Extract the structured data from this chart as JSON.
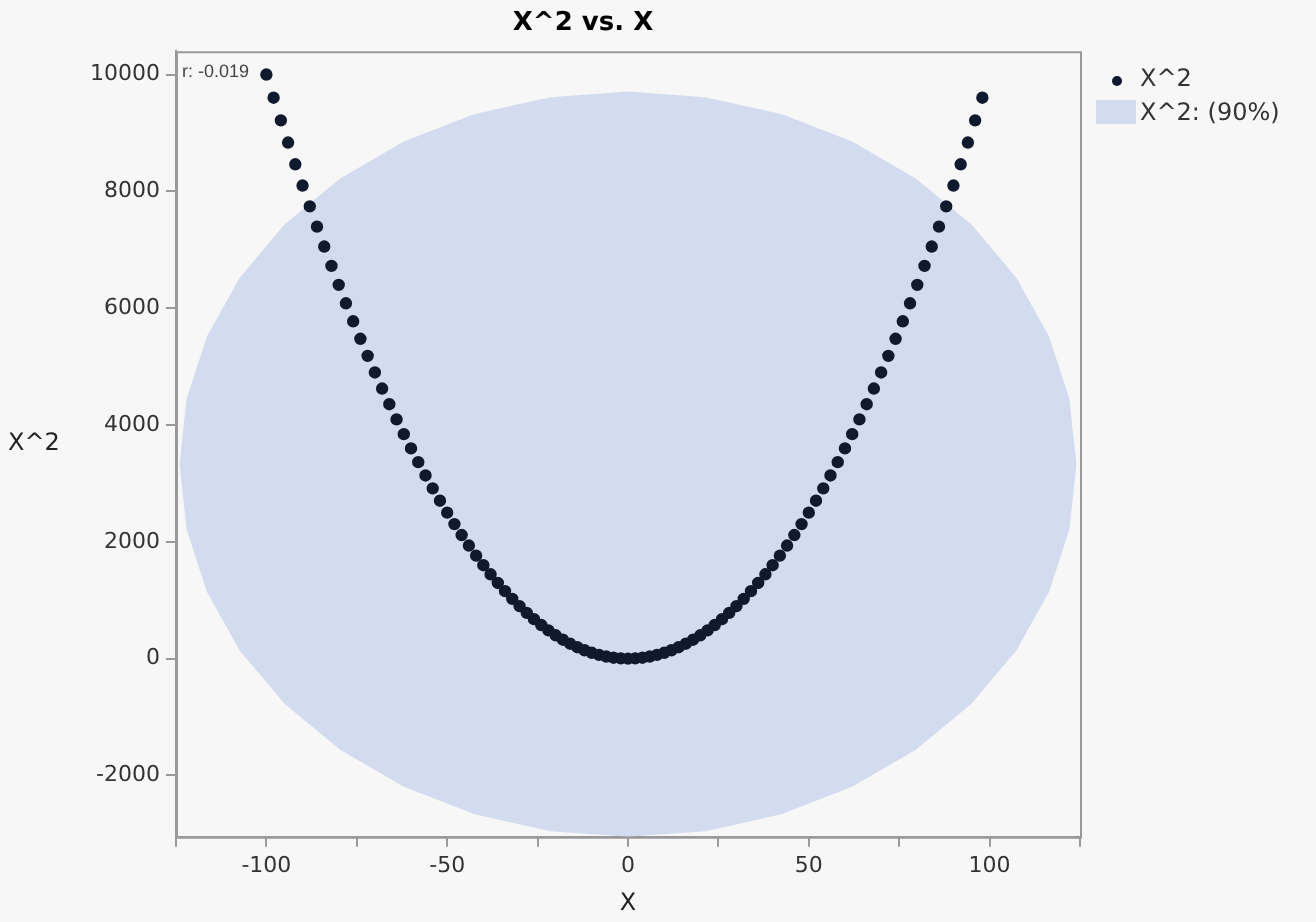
{
  "chart_data": {
    "type": "scatter",
    "title": "X^2 vs. X",
    "xlabel": "X",
    "ylabel": "X^2",
    "xlim": [
      -125,
      125
    ],
    "xticks": [
      {
        "value": -125,
        "label": null
      },
      -100,
      {
        "value": -75,
        "label": null
      },
      -50,
      {
        "value": -25,
        "label": null
      },
      0,
      {
        "value": 25,
        "label": null
      },
      50,
      {
        "value": 75,
        "label": null
      },
      100,
      {
        "value": 125,
        "label": null
      }
    ],
    "ylim": [
      -3050,
      10400
    ],
    "yticks": [
      -2000,
      0,
      2000,
      4000,
      6000,
      8000,
      10000
    ],
    "grid": false,
    "legend": "top right",
    "annotations": [
      "r: -0.019"
    ],
    "series": [
      {
        "name": "X^2: (90%)",
        "type": "area",
        "color": "#d3dcef",
        "x": [
          124,
          122.1,
          116.5,
          107.4,
          95,
          79.7,
          62,
          42.4,
          21.5,
          0,
          -21.5,
          -42.4,
          -62,
          -79.7,
          -95,
          -107.4,
          -116.5,
          -122.1,
          -124,
          -122.1,
          -116.5,
          -107.4,
          -95,
          -79.7,
          -62,
          -42.4,
          -21.5,
          0,
          21.5,
          42.4,
          62,
          79.7,
          95,
          107.4,
          116.5,
          122.1,
          124
        ],
        "values": [
          3330,
          4438,
          5512,
          6520,
          7431,
          8217,
          8855,
          9325,
          9613,
          9710,
          9613,
          9325,
          8855,
          8217,
          7431,
          6520,
          5512,
          4438,
          3330,
          2222,
          1148,
          140,
          -771,
          -1557,
          -2195,
          -2665,
          -2953,
          -3050,
          -2953,
          -2665,
          -2195,
          -1557,
          -771,
          140,
          1148,
          2222,
          3330
        ]
      },
      {
        "name": "X^2",
        "type": "scatter",
        "marker": "circle",
        "color": "#0f1a2e",
        "x": [
          -100,
          -98,
          -96,
          -94,
          -92,
          -90,
          -88,
          -86,
          -84,
          -82,
          -80,
          -78,
          -76,
          -74,
          -72,
          -70,
          -68,
          -66,
          -64,
          -62,
          -60,
          -58,
          -56,
          -54,
          -52,
          -50,
          -48,
          -46,
          -44,
          -42,
          -40,
          -38,
          -36,
          -34,
          -32,
          -30,
          -28,
          -26,
          -24,
          -22,
          -20,
          -18,
          -16,
          -14,
          -12,
          -10,
          -8,
          -6,
          -4,
          -2,
          0,
          2,
          4,
          6,
          8,
          10,
          12,
          14,
          16,
          18,
          20,
          22,
          24,
          26,
          28,
          30,
          32,
          34,
          36,
          38,
          40,
          42,
          44,
          46,
          48,
          50,
          52,
          54,
          56,
          58,
          60,
          62,
          64,
          66,
          68,
          70,
          72,
          74,
          76,
          78,
          80,
          82,
          84,
          86,
          88,
          90,
          92,
          94,
          96,
          98
        ],
        "values": [
          10000,
          9604,
          9216,
          8836,
          8464,
          8100,
          7744,
          7396,
          7056,
          6724,
          6400,
          6084,
          5776,
          5476,
          5184,
          4900,
          4624,
          4356,
          4096,
          3844,
          3600,
          3364,
          3136,
          2916,
          2704,
          2500,
          2304,
          2116,
          1936,
          1764,
          1600,
          1444,
          1296,
          1156,
          1024,
          900,
          784,
          676,
          576,
          484,
          400,
          324,
          256,
          196,
          144,
          100,
          64,
          36,
          16,
          4,
          0,
          4,
          16,
          36,
          64,
          100,
          144,
          196,
          256,
          324,
          400,
          484,
          576,
          676,
          784,
          900,
          1024,
          1156,
          1296,
          1444,
          1600,
          1764,
          1936,
          2116,
          2304,
          2500,
          2704,
          2916,
          3136,
          3364,
          3600,
          3844,
          4096,
          4356,
          4624,
          4900,
          5184,
          5476,
          5776,
          6084,
          6400,
          6724,
          7056,
          7396,
          7744,
          8100,
          8464,
          8836,
          9216,
          9604
        ]
      }
    ]
  }
}
